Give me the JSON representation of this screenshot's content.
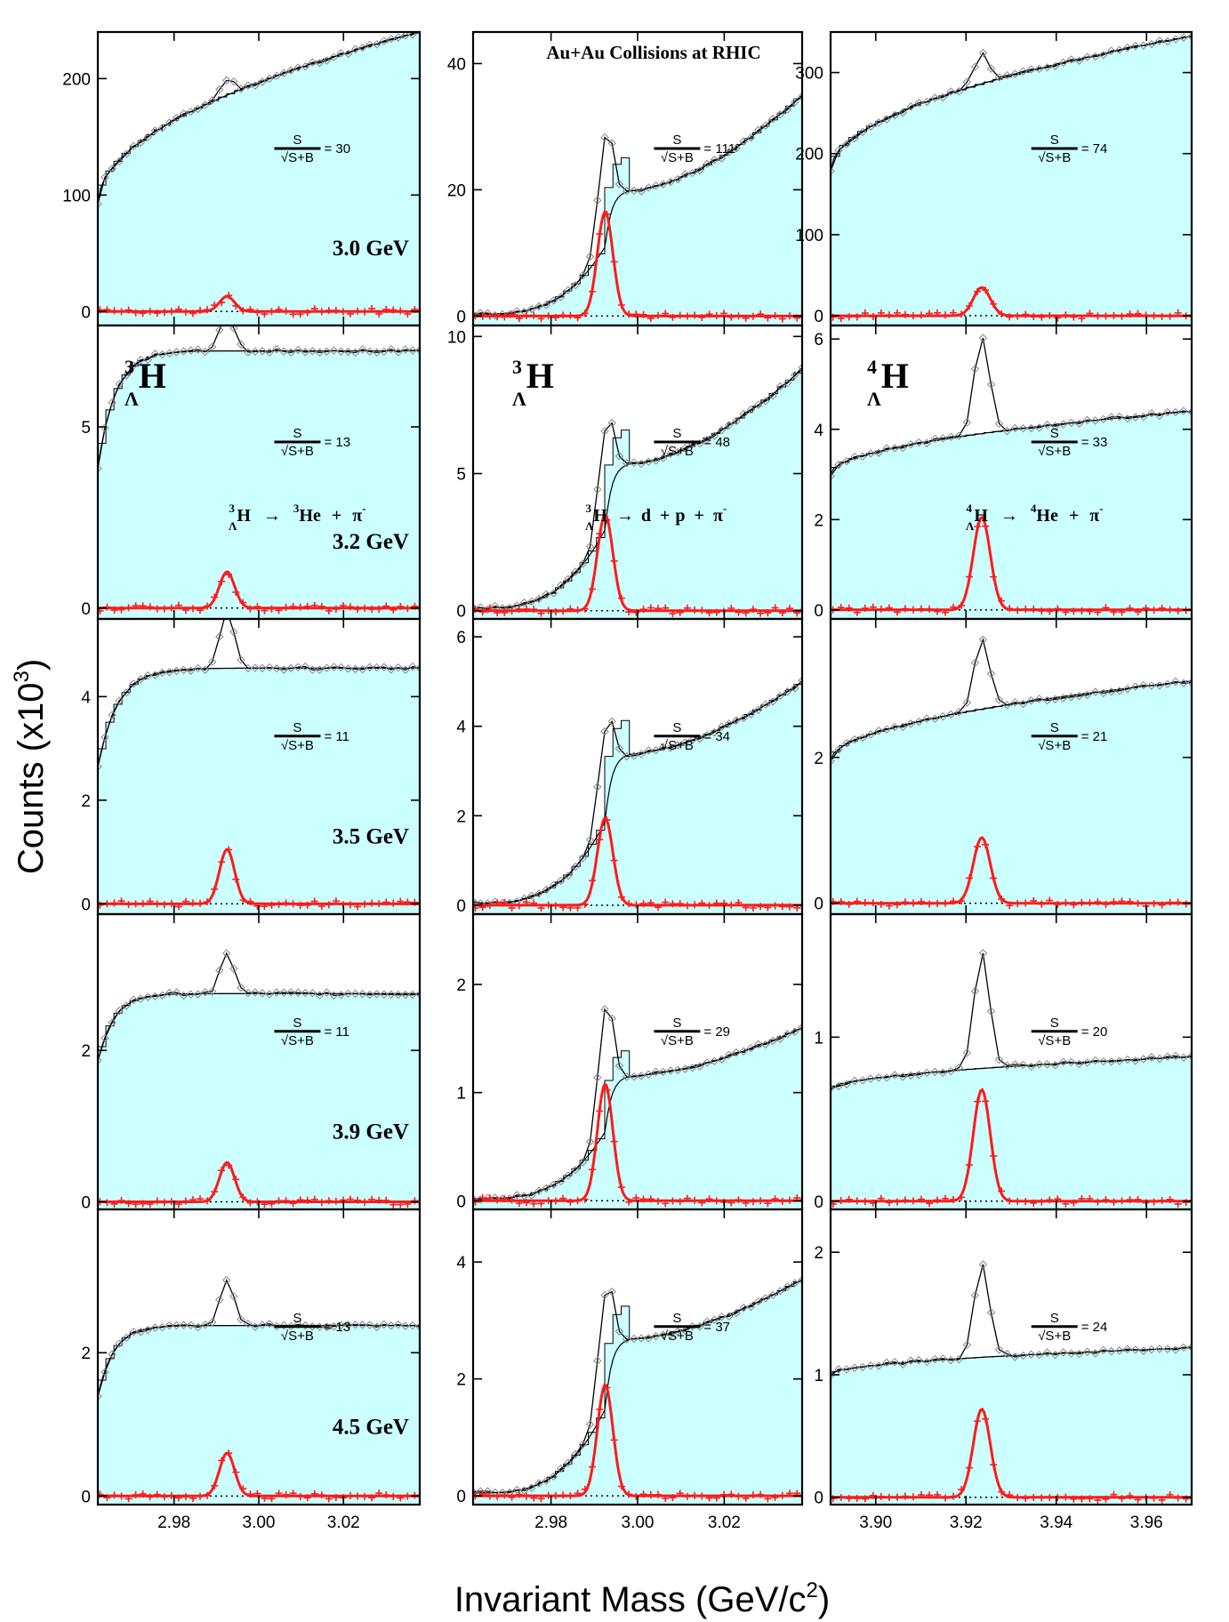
{
  "figure": {
    "ylabel_main": "Counts (x10",
    "ylabel_sup": "3",
    "ylabel_close": ")",
    "xlabel_main": "Invariant Mass (GeV/c",
    "xlabel_sup": "2",
    "xlabel_close": ")",
    "title": "Au+Au Collisions at RHIC"
  },
  "labels": {
    "col1_species": {
      "sup": "3",
      "sub": "Λ",
      "base": "H"
    },
    "col2_species": {
      "sup": "3",
      "sub": "Λ",
      "base": "H"
    },
    "col3_species": {
      "sup": "4",
      "sub": "Λ",
      "base": "H"
    },
    "decay1": {
      "sup1": "3",
      "sub1": "Λ",
      "p1": "H",
      "arrow": "→",
      "sup2": "3",
      "p2": "He",
      "plus": "+",
      "pi": "π",
      "pisup": "-"
    },
    "decay2": {
      "sup1": "3",
      "sub1": "Λ",
      "p1": "H",
      "arrow": "→",
      "p2": "d",
      "plus1": "+",
      "p3": "p",
      "plus2": "+",
      "pi": "π",
      "pisup": "-"
    },
    "decay3": {
      "sup1": "4",
      "sub1": "Λ",
      "p1": "H",
      "arrow": "→",
      "sup2": "4",
      "p2": "He",
      "plus": "+",
      "pi": "π",
      "pisup": "-"
    },
    "sig_num": "S",
    "sig_den": "√S+B"
  },
  "chart_data": {
    "type": "line",
    "energies": [
      "3.0 GeV",
      "3.2 GeV",
      "3.5 GeV",
      "3.9 GeV",
      "4.5 GeV"
    ],
    "xaxes": {
      "col1": {
        "xlim": [
          2.962,
          3.038
        ],
        "ticks": [
          "2.98",
          "3.00",
          "3.02"
        ]
      },
      "col2": {
        "xlim": [
          2.962,
          3.038
        ],
        "ticks": [
          "2.98",
          "3.00",
          "3.02"
        ]
      },
      "col3": {
        "xlim": [
          3.89,
          3.97
        ],
        "ticks": [
          "3.90",
          "3.92",
          "3.94",
          "3.96"
        ]
      }
    },
    "panels": [
      {
        "row": 0,
        "col": 0,
        "ylim": [
          -12,
          240
        ],
        "yticks": [
          "0",
          "100",
          "200"
        ],
        "significance": "30",
        "bg_start": 92,
        "bg_plateau": 185,
        "bg_end": 240,
        "bg_k": 55,
        "bg_shape": "sqrt",
        "peak_height": 13,
        "step": 0
      },
      {
        "row": 0,
        "col": 1,
        "ylim": [
          -1.5,
          45
        ],
        "yticks": [
          "0",
          "20",
          "40"
        ],
        "significance": "111",
        "bg_start": 0.3,
        "bg_min": 20,
        "bg_end": 35,
        "bg_shape": "valley",
        "peak_height": 16.5,
        "step": 5.5
      },
      {
        "row": 0,
        "col": 2,
        "ylim": [
          -12,
          350
        ],
        "yticks": [
          "0",
          "100",
          "200",
          "300"
        ],
        "significance": "74",
        "bg_start": 178,
        "bg_plateau": 260,
        "bg_end": 345,
        "bg_k": 60,
        "bg_shape": "sqrt",
        "peak_height": 35,
        "step": 0
      },
      {
        "row": 1,
        "col": 0,
        "ylim": [
          -0.3,
          7.8
        ],
        "yticks": [
          "0",
          "5"
        ],
        "significance": "13",
        "bg_start": 3.9,
        "bg_plateau": 6.1,
        "bg_end": 7.1,
        "bg_k": 180,
        "bg_shape": "exp",
        "peak_height": 1.0,
        "step": 0
      },
      {
        "row": 1,
        "col": 1,
        "ylim": [
          -0.3,
          10.4
        ],
        "yticks": [
          "0",
          "5",
          "10"
        ],
        "significance": "48",
        "bg_start": 0.1,
        "bg_min": 5.4,
        "bg_end": 8.8,
        "bg_shape": "valley",
        "peak_height": 3.5,
        "step": 1.3
      },
      {
        "row": 1,
        "col": 2,
        "ylim": [
          -0.2,
          6.3
        ],
        "yticks": [
          "0",
          "2",
          "4",
          "6"
        ],
        "significance": "33",
        "bg_start": 3.0,
        "bg_plateau": 3.6,
        "bg_end": 4.4,
        "bg_k": 60,
        "bg_shape": "sqrt",
        "peak_height": 2.05,
        "step": 0
      },
      {
        "row": 2,
        "col": 0,
        "ylim": [
          -0.2,
          5.5
        ],
        "yticks": [
          "0",
          "2",
          "4"
        ],
        "significance": "11",
        "bg_start": 2.65,
        "bg_plateau": 4.1,
        "bg_end": 4.55,
        "bg_k": 160,
        "bg_shape": "exp",
        "peak_height": 1.05,
        "step": 0
      },
      {
        "row": 2,
        "col": 1,
        "ylim": [
          -0.2,
          6.4
        ],
        "yticks": [
          "0",
          "2",
          "4",
          "6"
        ],
        "significance": "34",
        "bg_start": 0.05,
        "bg_min": 3.4,
        "bg_end": 5.0,
        "bg_shape": "valley",
        "peak_height": 1.95,
        "step": 0.8
      },
      {
        "row": 2,
        "col": 2,
        "ylim": [
          -0.15,
          3.9
        ],
        "yticks": [
          "0",
          "2"
        ],
        "significance": "21",
        "bg_start": 1.95,
        "bg_plateau": 2.4,
        "bg_end": 3.05,
        "bg_k": 60,
        "bg_shape": "sqrt",
        "peak_height": 0.9,
        "step": 0
      },
      {
        "row": 3,
        "col": 0,
        "ylim": [
          -0.1,
          3.8
        ],
        "yticks": [
          "0",
          "2"
        ],
        "significance": "11",
        "bg_start": 1.85,
        "bg_plateau": 2.7,
        "bg_end": 2.75,
        "bg_k": 200,
        "bg_shape": "exp",
        "peak_height": 0.52,
        "step": 0
      },
      {
        "row": 3,
        "col": 1,
        "ylim": [
          -0.08,
          2.65
        ],
        "yticks": [
          "0",
          "1",
          "2"
        ],
        "significance": "29",
        "bg_start": 0.02,
        "bg_min": 1.16,
        "bg_end": 1.6,
        "bg_shape": "valley",
        "peak_height": 1.08,
        "step": 0.25
      },
      {
        "row": 3,
        "col": 2,
        "ylim": [
          -0.05,
          1.75
        ],
        "yticks": [
          "0",
          "1"
        ],
        "significance": "20",
        "bg_start": 0.68,
        "bg_plateau": 0.78,
        "bg_end": 0.88,
        "bg_k": 60,
        "bg_shape": "sqrt",
        "peak_height": 0.68,
        "step": 0
      },
      {
        "row": 4,
        "col": 0,
        "ylim": [
          -0.12,
          4.0
        ],
        "yticks": [
          "0",
          "2"
        ],
        "significance": "13",
        "bg_start": 1.4,
        "bg_plateau": 2.35,
        "bg_end": 2.38,
        "bg_k": 200,
        "bg_shape": "exp",
        "peak_height": 0.6,
        "step": 0
      },
      {
        "row": 4,
        "col": 1,
        "ylim": [
          -0.15,
          4.9
        ],
        "yticks": [
          "0",
          "2",
          "4"
        ],
        "significance": "37",
        "bg_start": 0.05,
        "bg_min": 2.7,
        "bg_end": 3.7,
        "bg_shape": "valley",
        "peak_height": 1.9,
        "step": 0.6
      },
      {
        "row": 4,
        "col": 2,
        "ylim": [
          -0.06,
          2.35
        ],
        "yticks": [
          "0",
          "1",
          "2"
        ],
        "significance": "24",
        "bg_start": 1.0,
        "bg_plateau": 1.13,
        "bg_end": 1.22,
        "bg_k": 60,
        "bg_shape": "sqrt",
        "peak_height": 0.72,
        "step": 0
      }
    ],
    "peak_mass": {
      "col1": 2.9925,
      "col2": 2.9925,
      "col3": 3.9235
    },
    "colors": {
      "fill": "#ccffff",
      "signal": "#ff1a1a",
      "data": "#000000",
      "marker": "#888888"
    }
  }
}
